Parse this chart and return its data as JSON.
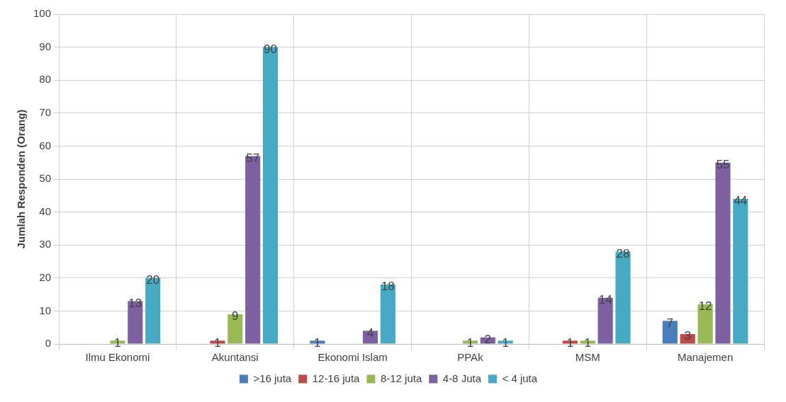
{
  "chart_data": {
    "type": "bar",
    "ylabel": "Jumlah Responden (Orang)",
    "categories": [
      "Ilmu Ekonomi",
      "Akuntansi",
      "Ekonomi Islam",
      "PPAk",
      "MSM",
      "Manajemen"
    ],
    "series": [
      {
        "name": ">16 juta",
        "color": "#4a7ebb",
        "values": [
          null,
          null,
          1,
          null,
          null,
          7
        ]
      },
      {
        "name": "12-16 juta",
        "color": "#be4b48",
        "values": [
          null,
          1,
          null,
          null,
          1,
          3
        ]
      },
      {
        "name": "8-12 juta",
        "color": "#98b954",
        "values": [
          1,
          9,
          null,
          1,
          1,
          12
        ]
      },
      {
        "name": "4-8 Juta",
        "color": "#7d60a0",
        "values": [
          13,
          57,
          4,
          2,
          14,
          55
        ]
      },
      {
        "name": "< 4 juta",
        "color": "#46aac5",
        "values": [
          20,
          90,
          18,
          1,
          28,
          44
        ]
      }
    ],
    "ylim": [
      0,
      100
    ],
    "yticks": [
      0,
      10,
      20,
      30,
      40,
      50,
      60,
      70,
      80,
      90,
      100
    ],
    "grid": true,
    "legend": "bottom",
    "data_labels": true
  }
}
